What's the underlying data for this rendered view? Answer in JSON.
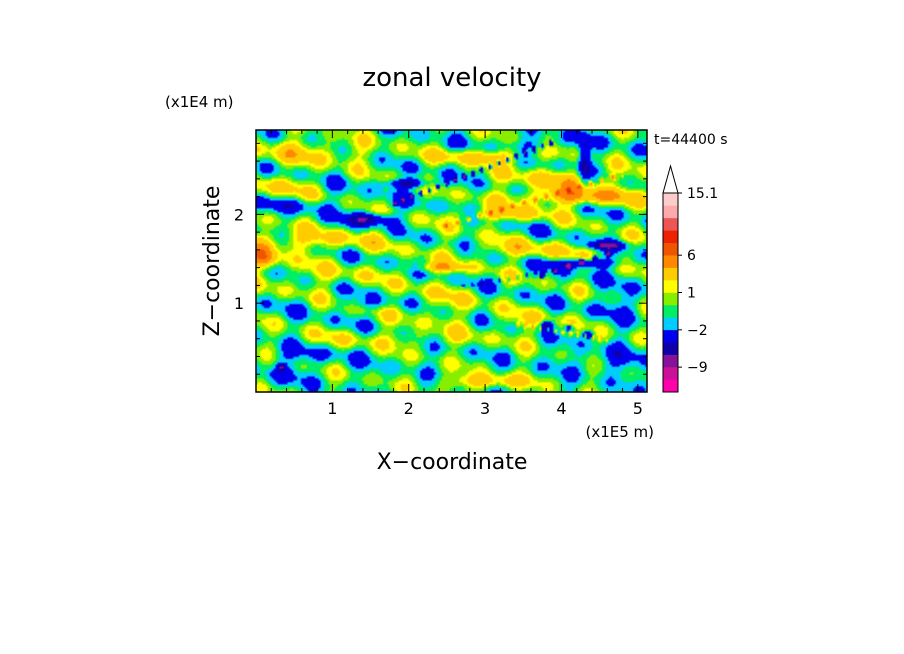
{
  "chart_data": {
    "type": "heatmap",
    "title": "zonal velocity",
    "xlabel": "X−coordinate",
    "ylabel": "Z−coordinate",
    "x_unit": "(x1E5 m)",
    "y_unit": "(x1E4 m)",
    "time_label": "t=44400 s",
    "xlim": [
      0,
      5.12
    ],
    "ylim": [
      0,
      2.95
    ],
    "x_ticks": [
      1,
      2,
      3,
      4,
      5
    ],
    "x_tick_labels": [
      "1",
      "2",
      "3",
      "4",
      "5"
    ],
    "y_ticks": [
      1,
      2
    ],
    "y_tick_labels": [
      "1",
      "2"
    ],
    "x_minor_step": 0.2,
    "y_minor_step": 0.2,
    "colorbar": {
      "levels": [
        -15,
        -12,
        -9,
        -6,
        -4,
        -2,
        -1,
        0,
        1,
        2,
        4,
        6,
        8,
        10,
        12.5,
        15.1
      ],
      "colors": [
        "#ff00aa",
        "#cc1199",
        "#881199",
        "#1100aa",
        "#0000ee",
        "#00ccff",
        "#00ee66",
        "#88ee00",
        "#ffff00",
        "#ffcc00",
        "#ff8800",
        "#ee5500",
        "#ee2200",
        "#ee5555",
        "#ffaaaa",
        "#ffcccc"
      ],
      "labels": [
        {
          "value": 15.1,
          "text": "15.1"
        },
        {
          "value": 6,
          "text": "6"
        },
        {
          "value": 1,
          "text": "1"
        },
        {
          "value": -2,
          "text": "−2"
        },
        {
          "value": -9,
          "text": "−9"
        }
      ],
      "extend": "max"
    },
    "field": {
      "background": -0.5,
      "features": [
        {
          "x": 0.6,
          "z": 2.7,
          "w": 0.9,
          "h": 0.15,
          "v": 2.5
        },
        {
          "x": 0.2,
          "z": 2.3,
          "w": 0.5,
          "h": 0.12,
          "v": 2.5
        },
        {
          "x": 0.4,
          "z": 2.1,
          "w": 0.8,
          "h": 0.08,
          "v": -1.5
        },
        {
          "x": 1.5,
          "z": 1.95,
          "w": 0.3,
          "h": 0.07,
          "v": -5
        },
        {
          "x": 0.4,
          "z": 1.7,
          "w": 1.3,
          "h": 0.12,
          "v": 3
        },
        {
          "x": 0.8,
          "z": 1.3,
          "w": 0.8,
          "h": 0.15,
          "v": 1.5
        },
        {
          "x": 2.4,
          "z": 1.0,
          "w": 0.6,
          "h": 0.25,
          "v": 1.5
        },
        {
          "x": 1.8,
          "z": 0.6,
          "w": 1.4,
          "h": 0.1,
          "v": 1.5
        },
        {
          "x": 3.6,
          "z": 0.8,
          "w": 0.5,
          "h": 0.12,
          "v": 1.5
        },
        {
          "x": 4.2,
          "z": 2.2,
          "w": 0.8,
          "h": 0.1,
          "v": 5
        },
        {
          "x": 3.2,
          "z": 2.0,
          "w": 0.6,
          "h": 0.08,
          "v": 3.5
        },
        {
          "x": 4.3,
          "z": 1.45,
          "w": 0.4,
          "h": 0.05,
          "v": -5
        },
        {
          "x": 4.6,
          "z": 1.65,
          "w": 0.25,
          "h": 0.04,
          "v": -5
        },
        {
          "x": 4.8,
          "z": 1.0,
          "w": 0.4,
          "h": 0.15,
          "v": -1.5
        },
        {
          "x": 4.0,
          "z": 2.4,
          "w": 0.9,
          "h": 0.12,
          "v": 2.5
        },
        {
          "x": 3.0,
          "z": 2.65,
          "w": 0.7,
          "h": 0.08,
          "v": 3.5
        },
        {
          "x": 3.7,
          "z": 2.8,
          "w": 0.5,
          "h": 0.08,
          "v": -1.5
        },
        {
          "x": 4.3,
          "z": 2.6,
          "w": 0.08,
          "h": 0.25,
          "v": -5
        },
        {
          "x": 2.0,
          "z": 2.35,
          "w": 0.3,
          "h": 0.05,
          "v": -5
        },
        {
          "x": 2.4,
          "z": 1.4,
          "w": 0.4,
          "h": 0.06,
          "v": 3.5
        },
        {
          "x": 3.5,
          "z": 1.6,
          "w": 0.8,
          "h": 0.1,
          "v": 2.5
        },
        {
          "x": 0.1,
          "z": 1.5,
          "w": 0.2,
          "h": 0.12,
          "v": 5
        },
        {
          "x": 4.7,
          "z": 0.35,
          "w": 0.7,
          "h": 0.15,
          "v": -1.5
        },
        {
          "x": 3.0,
          "z": 0.12,
          "w": 0.6,
          "h": 0.08,
          "v": 3.5
        },
        {
          "x": 0.3,
          "z": 0.2,
          "w": 0.25,
          "h": 0.15,
          "v": -1.5
        },
        {
          "x": 0.33,
          "z": 0.28,
          "w": 0.05,
          "h": 0.04,
          "v": -5
        },
        {
          "x": 3.8,
          "z": 0.75,
          "w": 0.08,
          "h": 0.05,
          "v": -5
        },
        {
          "x": 4.1,
          "z": 0.72,
          "w": 0.06,
          "h": 0.04,
          "v": -5
        },
        {
          "x": 4.35,
          "z": 0.65,
          "w": 0.06,
          "h": 0.04,
          "v": -5
        },
        {
          "x": 1.5,
          "z": 1.0,
          "w": 0.4,
          "h": 0.06,
          "v": -1.5
        },
        {
          "x": 0.6,
          "z": 0.4,
          "w": 0.6,
          "h": 0.1,
          "v": -1.5
        }
      ],
      "streaks": [
        {
          "x0": 1.9,
          "z0": 2.15,
          "x1": 3.7,
          "z1": 2.75,
          "spacing": 0.12,
          "v": -6
        },
        {
          "x0": 2.6,
          "z0": 1.9,
          "x1": 4.6,
          "z1": 2.4,
          "spacing": 0.15,
          "v": 4.5
        },
        {
          "x0": 2.8,
          "z0": 1.2,
          "x1": 3.8,
          "z1": 1.35,
          "spacing": 0.12,
          "v": -3
        },
        {
          "x0": 3.5,
          "z0": 0.75,
          "x1": 4.5,
          "z1": 0.6,
          "spacing": 0.1,
          "v": 3.5
        },
        {
          "x0": 3.7,
          "z0": 1.3,
          "x1": 4.6,
          "z1": 1.55,
          "spacing": 0.18,
          "v": -6
        }
      ]
    }
  }
}
